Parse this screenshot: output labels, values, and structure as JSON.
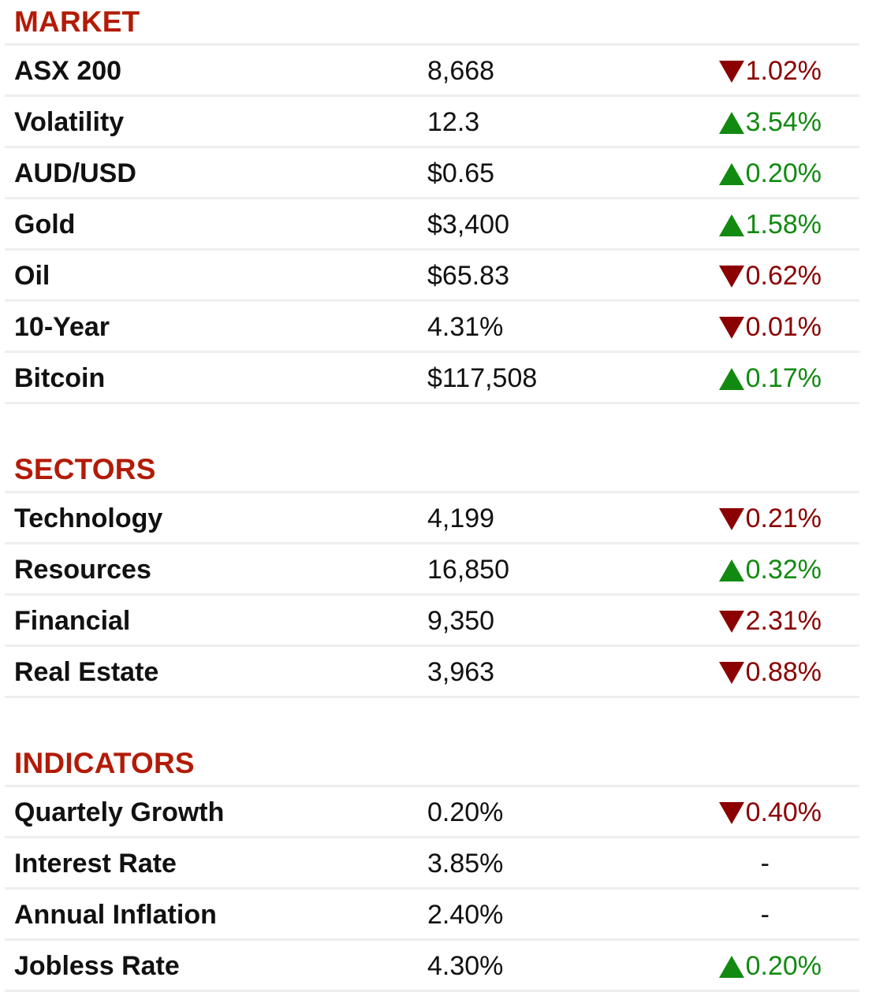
{
  "sections": [
    {
      "title": "MARKET",
      "rows": [
        {
          "name": "ASX 200",
          "value": "8,668",
          "change": "1.02%",
          "direction": "down"
        },
        {
          "name": "Volatility",
          "value": "12.3",
          "change": "3.54%",
          "direction": "up"
        },
        {
          "name": "AUD/USD",
          "value": "$0.65",
          "change": "0.20%",
          "direction": "up"
        },
        {
          "name": "Gold",
          "value": "$3,400",
          "change": "1.58%",
          "direction": "up"
        },
        {
          "name": "Oil",
          "value": "$65.83",
          "change": "0.62%",
          "direction": "down"
        },
        {
          "name": "10-Year",
          "value": "4.31%",
          "change": "0.01%",
          "direction": "down"
        },
        {
          "name": "Bitcoin",
          "value": "$117,508",
          "change": "0.17%",
          "direction": "up"
        }
      ]
    },
    {
      "title": "SECTORS",
      "rows": [
        {
          "name": "Technology",
          "value": "4,199",
          "change": "0.21%",
          "direction": "down"
        },
        {
          "name": "Resources",
          "value": "16,850",
          "change": "0.32%",
          "direction": "up"
        },
        {
          "name": "Financial",
          "value": "9,350",
          "change": "2.31%",
          "direction": "down"
        },
        {
          "name": "Real Estate",
          "value": "3,963",
          "change": "0.88%",
          "direction": "down"
        }
      ]
    },
    {
      "title": "INDICATORS",
      "rows": [
        {
          "name": "Quartely Growth",
          "value": "0.20%",
          "change": "0.40%",
          "direction": "down"
        },
        {
          "name": "Interest Rate",
          "value": "3.85%",
          "change": "-",
          "direction": "flat"
        },
        {
          "name": "Annual Inflation",
          "value": "2.40%",
          "change": "-",
          "direction": "flat"
        },
        {
          "name": "Jobless Rate",
          "value": "4.30%",
          "change": "0.20%",
          "direction": "up"
        }
      ]
    }
  ],
  "colors": {
    "section_title": "#b31b07",
    "down": "#8b0000",
    "up": "#128a12",
    "divider": "#eeeeee"
  },
  "icons": {
    "down": "down-triangle-icon",
    "up": "up-triangle-icon"
  }
}
